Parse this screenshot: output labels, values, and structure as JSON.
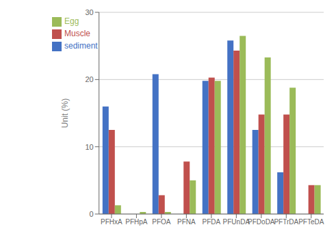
{
  "chart_data": {
    "type": "bar",
    "categories": [
      "PFHxA",
      "PFHpA",
      "PFOA",
      "PFNA",
      "PFDA",
      "PFUnDA",
      "PFDoDA",
      "PFTrDA",
      "PFTeDA"
    ],
    "series": [
      {
        "name": "sediment",
        "color": "#4472C4",
        "values": [
          16.0,
          0.0,
          20.8,
          0.0,
          19.8,
          25.8,
          12.5,
          6.2,
          0.0
        ]
      },
      {
        "name": "Muscle",
        "color": "#C0504D",
        "values": [
          12.5,
          0.0,
          2.8,
          7.8,
          20.3,
          24.3,
          14.8,
          14.8,
          4.3
        ]
      },
      {
        "name": "Egg",
        "color": "#9BBB59",
        "values": [
          1.3,
          0.3,
          0.3,
          5.0,
          19.8,
          26.5,
          23.3,
          18.8,
          4.3
        ]
      }
    ],
    "ylabel": "Unit (%)",
    "ylim": [
      0,
      30
    ],
    "yticks": [
      0,
      10,
      20,
      30
    ],
    "grid": true,
    "legend": "upper left"
  }
}
